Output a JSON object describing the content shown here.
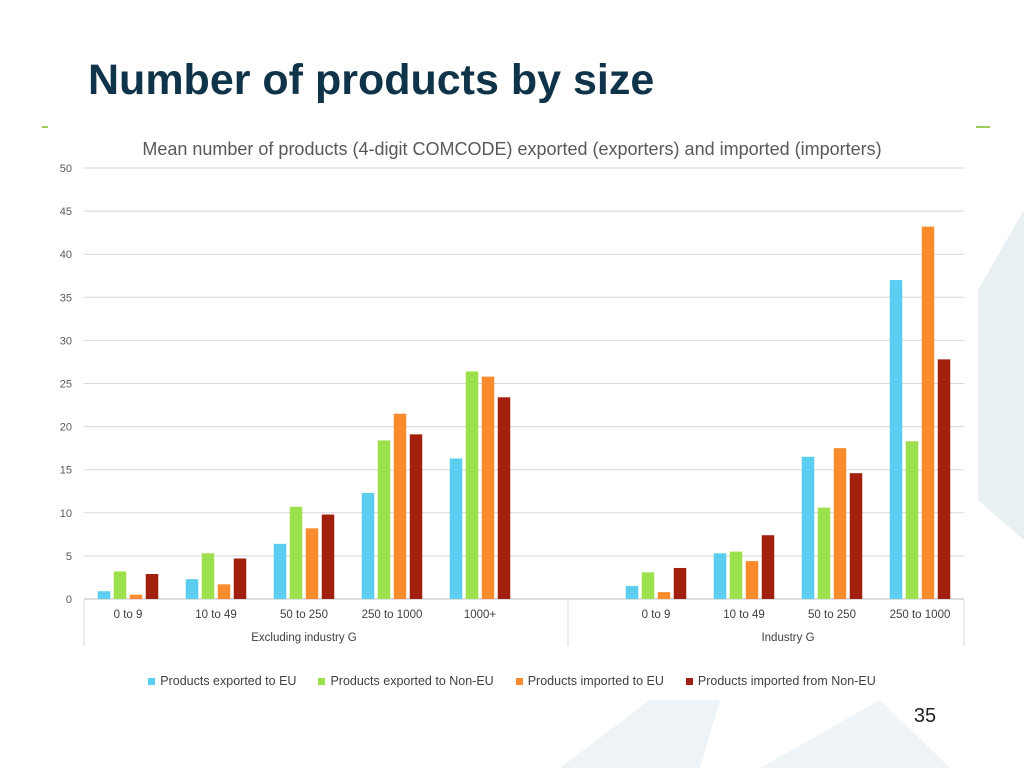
{
  "slide": {
    "title": "Number of products by size",
    "page_number": "35"
  },
  "colors": {
    "title": "#0f3349",
    "accent_green": "#9acd5a",
    "background_shape": "#e8f0f4"
  },
  "chart_data": {
    "type": "bar",
    "title": "Mean number of products (4-digit COMCODE) exported (exporters) and imported (importers)",
    "xlabel": "",
    "ylabel": "",
    "ylim": [
      0,
      50
    ],
    "yticks": [
      0,
      5,
      10,
      15,
      20,
      25,
      30,
      35,
      40,
      45,
      50
    ],
    "grid": true,
    "legend_position": "bottom",
    "groups": [
      {
        "name": "Excluding industry G",
        "categories": [
          "0 to 9",
          "10 to 49",
          "50 to 250",
          "250 to 1000",
          "1000+"
        ]
      },
      {
        "name": "Industry G",
        "categories": [
          "0 to 9",
          "10 to 49",
          "50 to 250",
          "250 to 1000"
        ]
      }
    ],
    "categories": [
      "0 to 9",
      "10 to 49",
      "50 to 250",
      "250 to 1000",
      "1000+",
      "",
      "0 to 9",
      "10 to 49",
      "50 to 250",
      "250 to 1000"
    ],
    "series": [
      {
        "name": "Products exported to EU",
        "color": "#5bcdef",
        "values": [
          0.9,
          2.3,
          6.4,
          12.3,
          16.3,
          null,
          1.5,
          5.3,
          16.5,
          37.0
        ]
      },
      {
        "name": "Products exported to Non-EU",
        "color": "#9de04e",
        "values": [
          3.2,
          5.3,
          10.7,
          18.4,
          26.4,
          null,
          3.1,
          5.5,
          10.6,
          18.3
        ]
      },
      {
        "name": "Products imported to EU",
        "color": "#fa8c2e",
        "values": [
          0.5,
          1.7,
          8.2,
          21.5,
          25.8,
          null,
          0.8,
          4.4,
          17.5,
          43.2
        ]
      },
      {
        "name": "Products imported from Non-EU",
        "color": "#a3200f",
        "values": [
          2.9,
          4.7,
          9.8,
          19.1,
          23.4,
          null,
          3.6,
          7.4,
          14.6,
          27.8
        ]
      }
    ]
  }
}
